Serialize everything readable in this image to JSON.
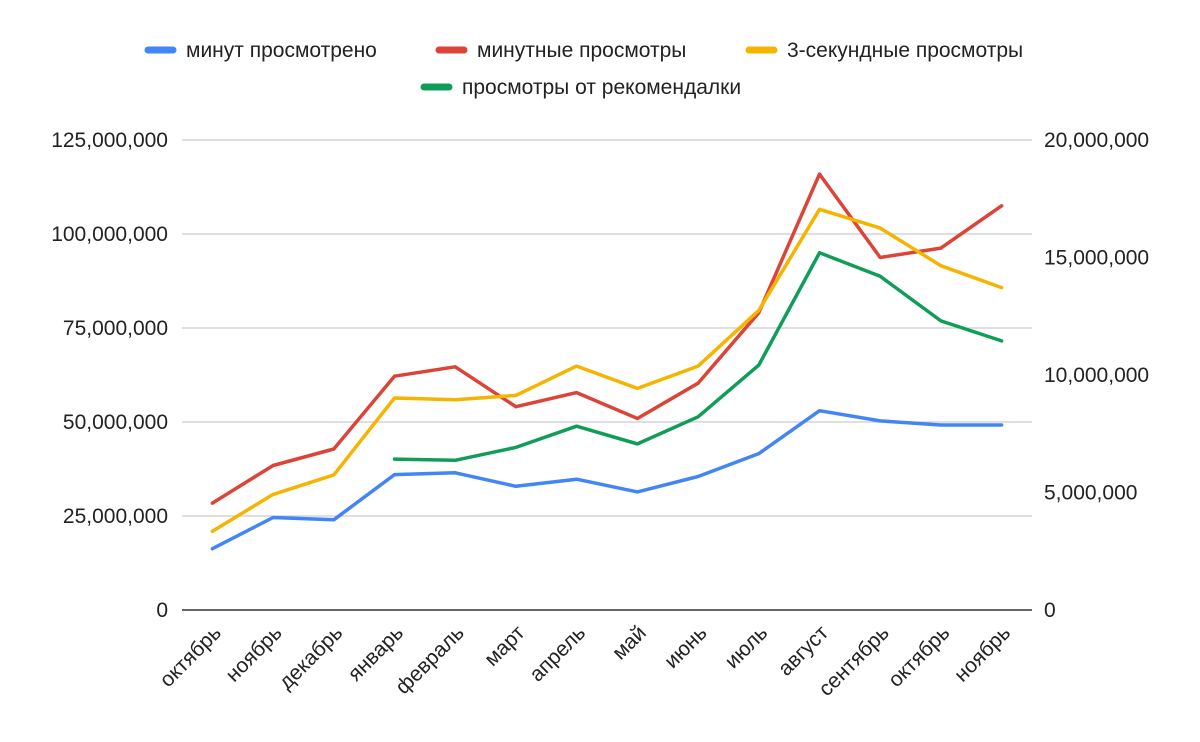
{
  "chart_data": {
    "type": "line",
    "title": "",
    "xlabel": "",
    "ylabel": "",
    "categories": [
      "октябрь",
      "ноябрь",
      "декабрь",
      "январь",
      "февраль",
      "март",
      "апрель",
      "май",
      "июнь",
      "июль",
      "август",
      "сентябрь",
      "октябрь",
      "ноябрь"
    ],
    "y_left": {
      "min": 0,
      "max": 125000000,
      "ticks": [
        0,
        25000000,
        50000000,
        75000000,
        100000000,
        125000000
      ],
      "tick_labels": [
        "0",
        "25,000,000",
        "50,000,000",
        "75,000,000",
        "100,000,000",
        "125,000,000"
      ]
    },
    "y_right": {
      "min": 0,
      "max": 20000000,
      "ticks": [
        0,
        5000000,
        10000000,
        15000000,
        20000000
      ],
      "tick_labels": [
        "0",
        "5,000,000",
        "10,000,000",
        "15,000,000",
        "20,000,000"
      ]
    },
    "grid": true,
    "legend_position": "top",
    "series": [
      {
        "name": "минут просмотрено",
        "color": "#4285f4",
        "axis": "left",
        "values": [
          16300000,
          24600000,
          24000000,
          36000000,
          36500000,
          32900000,
          34800000,
          31400000,
          35500000,
          41600000,
          53000000,
          50300000,
          49200000,
          49200000
        ]
      },
      {
        "name": "минутные просмотры",
        "color": "#db4437",
        "axis": "right",
        "values": [
          4550000,
          6150000,
          6850000,
          9950000,
          10350000,
          8650000,
          9250000,
          8150000,
          9650000,
          12650000,
          18550000,
          15000000,
          15400000,
          17200000
        ]
      },
      {
        "name": "3-секундные просмотры",
        "color": "#f4b400",
        "axis": "right",
        "values": [
          3350000,
          4920000,
          5750000,
          9020000,
          8950000,
          9130000,
          10380000,
          9430000,
          10380000,
          12750000,
          17050000,
          16250000,
          14650000,
          13720000
        ]
      },
      {
        "name": "просмотры от рекомендалки",
        "color": "#0f9d58",
        "axis": "right",
        "values": [
          null,
          null,
          null,
          6420000,
          6370000,
          6920000,
          7820000,
          7070000,
          8220000,
          10420000,
          15200000,
          14200000,
          12300000,
          11450000
        ]
      }
    ]
  }
}
